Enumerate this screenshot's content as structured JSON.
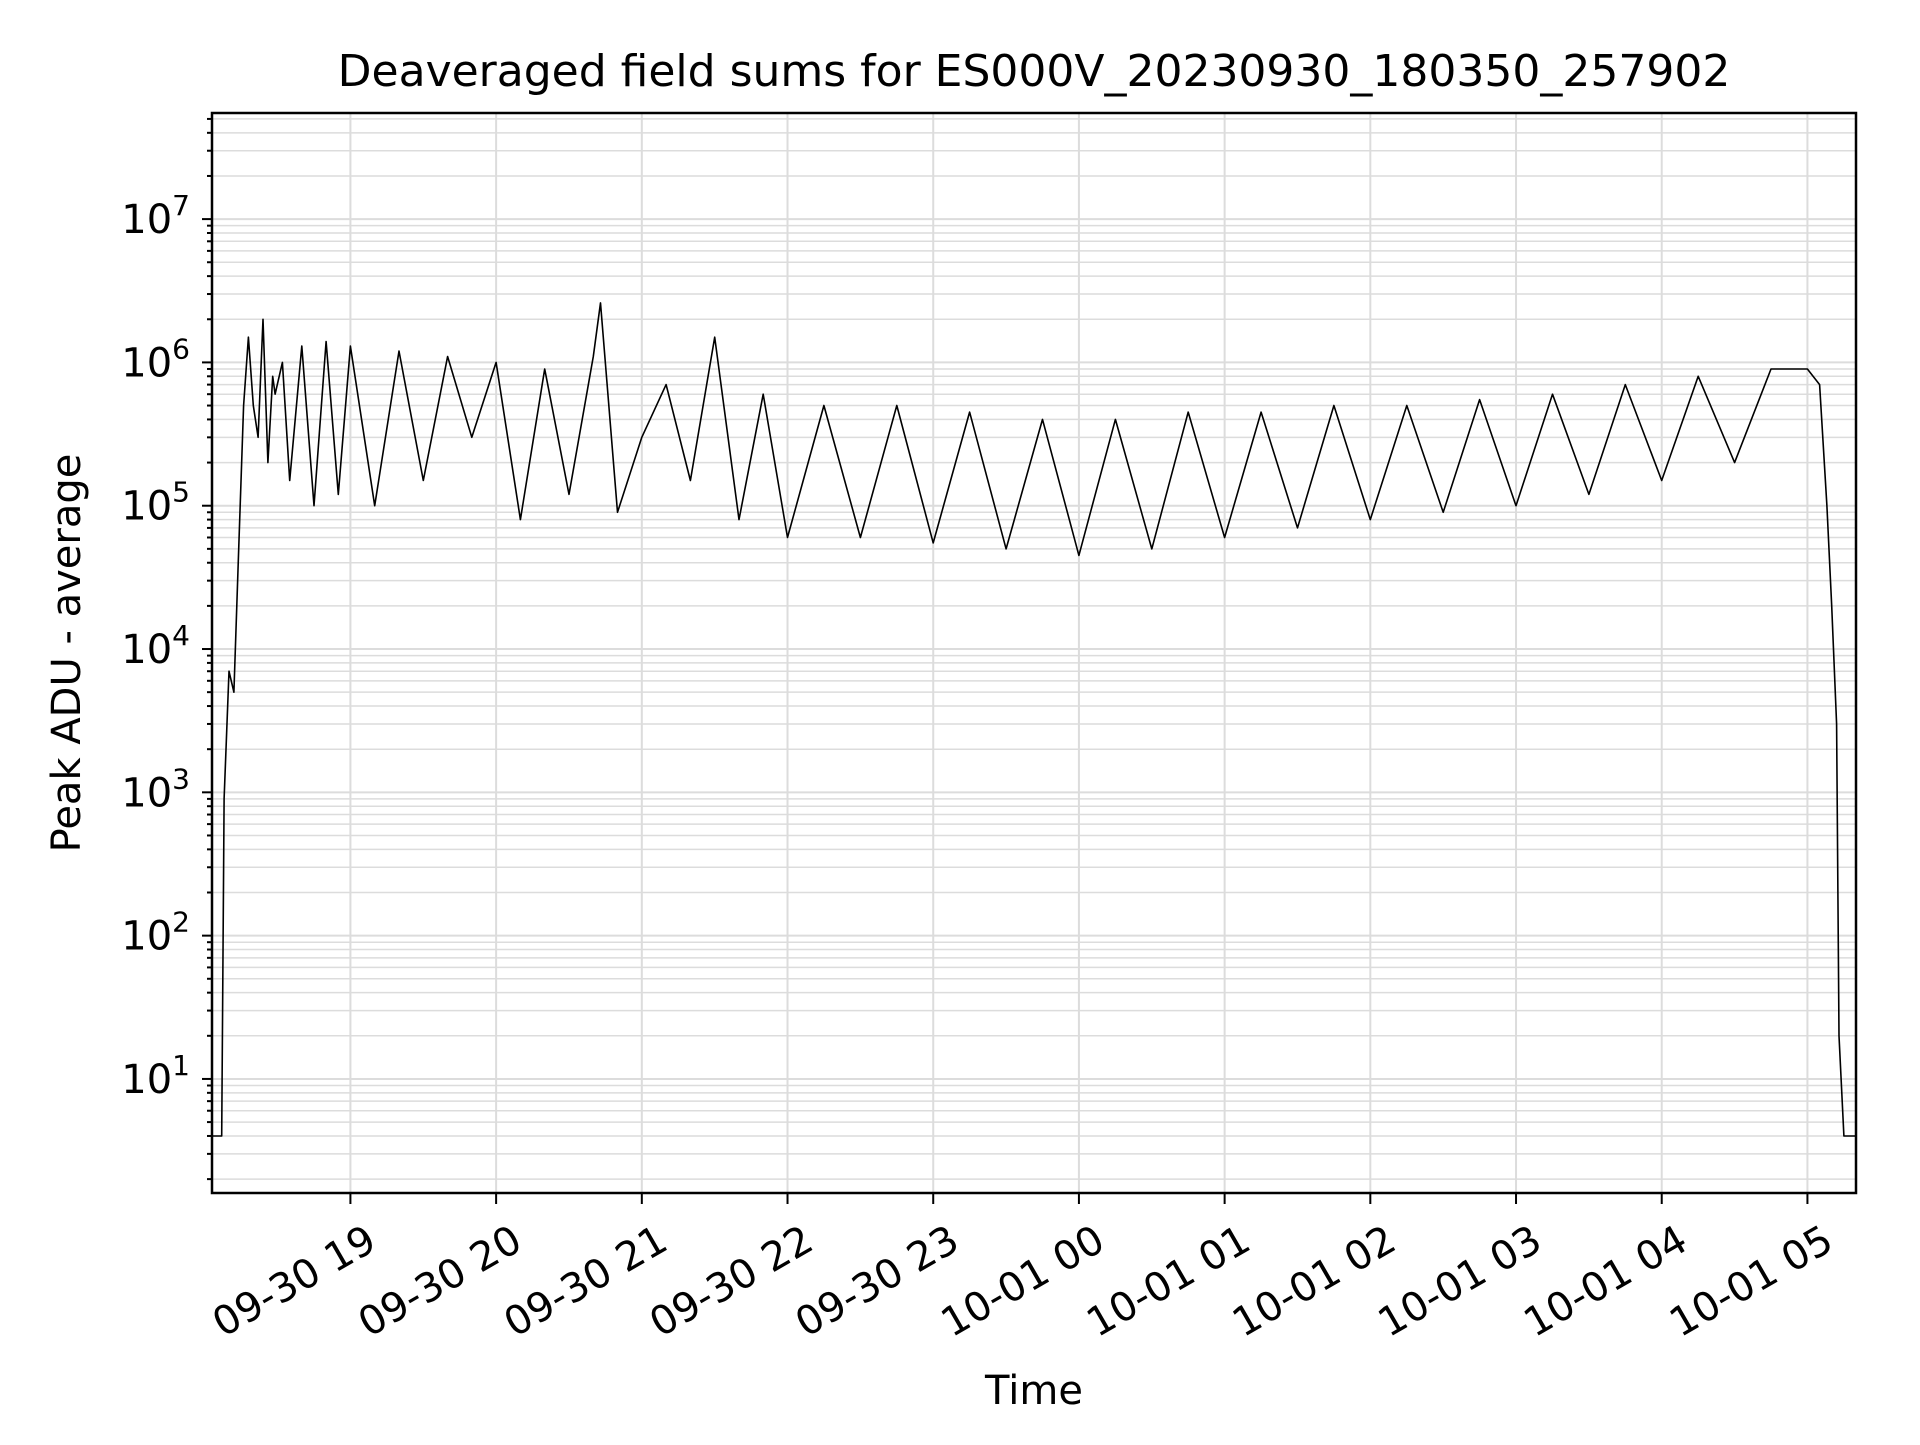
{
  "chart_data": {
    "type": "line",
    "title": "Deaveraged field sums for ES000V_20230930_180350_257902",
    "xlabel": "Time",
    "ylabel": "Peak ADU - average",
    "yscale": "log",
    "ylim": [
      1.6,
      55000000
    ],
    "xlim": [
      "2023-09-30 18:03",
      "2023-10-01 05:20"
    ],
    "grid": true,
    "line_color": "#000000",
    "grid_color": "#dcdcdc",
    "x_ticks": [
      {
        "value": "2023-09-30 19:00",
        "label": "09-30 19"
      },
      {
        "value": "2023-09-30 20:00",
        "label": "09-30 20"
      },
      {
        "value": "2023-09-30 21:00",
        "label": "09-30 21"
      },
      {
        "value": "2023-09-30 22:00",
        "label": "09-30 22"
      },
      {
        "value": "2023-09-30 23:00",
        "label": "09-30 23"
      },
      {
        "value": "2023-10-01 00:00",
        "label": "10-01 00"
      },
      {
        "value": "2023-10-01 01:00",
        "label": "10-01 01"
      },
      {
        "value": "2023-10-01 02:00",
        "label": "10-01 02"
      },
      {
        "value": "2023-10-01 03:00",
        "label": "10-01 03"
      },
      {
        "value": "2023-10-01 04:00",
        "label": "10-01 04"
      },
      {
        "value": "2023-10-01 05:00",
        "label": "10-01 05"
      }
    ],
    "y_ticks": [
      {
        "value": 10,
        "base": "10",
        "exp": "1"
      },
      {
        "value": 100,
        "base": "10",
        "exp": "2"
      },
      {
        "value": 1000,
        "base": "10",
        "exp": "3"
      },
      {
        "value": 10000,
        "base": "10",
        "exp": "4"
      },
      {
        "value": 100000,
        "base": "10",
        "exp": "5"
      },
      {
        "value": 1000000,
        "base": "10",
        "exp": "6"
      },
      {
        "value": 10000000,
        "base": "10",
        "exp": "7"
      }
    ],
    "series": [
      {
        "x": [
          "2023-09-30 18:03",
          "2023-09-30 18:05",
          "2023-09-30 18:07",
          "2023-09-30 18:08",
          "2023-09-30 18:10",
          "2023-09-30 18:12",
          "2023-09-30 18:14",
          "2023-09-30 18:16",
          "2023-09-30 18:18",
          "2023-09-30 18:20",
          "2023-09-30 18:22",
          "2023-09-30 18:24",
          "2023-09-30 18:26",
          "2023-09-30 18:28",
          "2023-09-30 18:29",
          "2023-09-30 18:32",
          "2023-09-30 18:35",
          "2023-09-30 18:40",
          "2023-09-30 18:45",
          "2023-09-30 18:50",
          "2023-09-30 18:55",
          "2023-09-30 19:00",
          "2023-09-30 19:10",
          "2023-09-30 19:20",
          "2023-09-30 19:30",
          "2023-09-30 19:40",
          "2023-09-30 19:50",
          "2023-09-30 20:00",
          "2023-09-30 20:10",
          "2023-09-30 20:20",
          "2023-09-30 20:30",
          "2023-09-30 20:40",
          "2023-09-30 20:43",
          "2023-09-30 20:50",
          "2023-09-30 21:00",
          "2023-09-30 21:10",
          "2023-09-30 21:20",
          "2023-09-30 21:30",
          "2023-09-30 21:40",
          "2023-09-30 21:50",
          "2023-09-30 22:00",
          "2023-09-30 22:15",
          "2023-09-30 22:30",
          "2023-09-30 22:45",
          "2023-09-30 23:00",
          "2023-09-30 23:15",
          "2023-09-30 23:30",
          "2023-09-30 23:45",
          "2023-10-01 00:00",
          "2023-10-01 00:15",
          "2023-10-01 00:30",
          "2023-10-01 00:45",
          "2023-10-01 01:00",
          "2023-10-01 01:15",
          "2023-10-01 01:30",
          "2023-10-01 01:45",
          "2023-10-01 02:00",
          "2023-10-01 02:15",
          "2023-10-01 02:30",
          "2023-10-01 02:45",
          "2023-10-01 03:00",
          "2023-10-01 03:15",
          "2023-10-01 03:30",
          "2023-10-01 03:45",
          "2023-10-01 04:00",
          "2023-10-01 04:15",
          "2023-10-01 04:30",
          "2023-10-01 04:45",
          "2023-10-01 05:00",
          "2023-10-01 05:05",
          "2023-10-01 05:08",
          "2023-10-01 05:10",
          "2023-10-01 05:12",
          "2023-10-01 05:13",
          "2023-10-01 05:15",
          "2023-10-01 05:17",
          "2023-10-01 05:20"
        ],
        "y": [
          4,
          4,
          4,
          900,
          7000,
          5000,
          50000,
          500000,
          1500000,
          500000,
          300000,
          2000000,
          200000,
          800000,
          600000,
          1000000,
          150000,
          1300000,
          100000,
          1400000,
          120000,
          1300000,
          100000,
          1200000,
          150000,
          1100000,
          300000,
          1000000,
          80000,
          900000,
          120000,
          1100000,
          2600000,
          90000,
          300000,
          700000,
          150000,
          1500000,
          80000,
          600000,
          60000,
          500000,
          60000,
          500000,
          55000,
          450000,
          50000,
          400000,
          45000,
          400000,
          50000,
          450000,
          60000,
          450000,
          70000,
          500000,
          80000,
          500000,
          90000,
          550000,
          100000,
          600000,
          120000,
          700000,
          150000,
          800000,
          200000,
          900000,
          900000,
          700000,
          100000,
          20000,
          3000,
          20,
          4,
          4,
          4
        ]
      }
    ]
  }
}
